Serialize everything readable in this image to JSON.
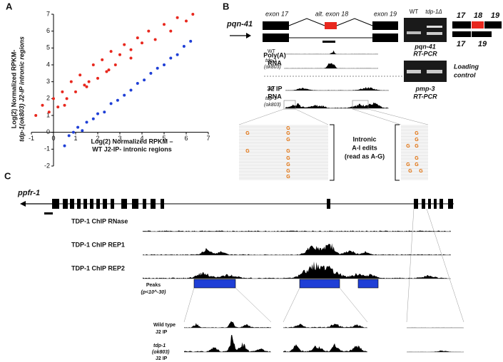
{
  "chart_data": {
    "type": "scatter",
    "x_label": "Log(2) Normalized RPKM –",
    "x_label_2": "WT J2-IP- intronic regions",
    "y_label": "Log(2) Normalized RPKM-",
    "y_label_2": "tdp-1(ok803) J2-IP intronic regions",
    "xlim": [
      -1,
      7
    ],
    "ylim": [
      -2,
      7
    ],
    "xticks": [
      -1,
      0,
      1,
      2,
      3,
      4,
      5,
      6,
      7
    ],
    "yticks": [
      -2,
      -1,
      0,
      1,
      2,
      3,
      4,
      5,
      6,
      7
    ],
    "series": [
      {
        "color": "#e8281e",
        "x": [
          -0.8,
          -0.5,
          -0.2,
          0,
          0.2,
          0.4,
          0.6,
          0.8,
          1.0,
          1.2,
          1.4,
          1.6,
          1.8,
          2.0,
          2.2,
          2.4,
          2.6,
          2.8,
          3.0,
          3.2,
          3.5,
          3.8,
          4.0,
          4.3,
          4.6,
          5.0,
          5.3,
          5.6,
          6.0,
          6.3,
          0.5,
          1.5,
          2.5,
          3.5
        ],
        "values": [
          1.0,
          1.6,
          1.2,
          2.0,
          1.5,
          2.4,
          2.0,
          3.0,
          2.4,
          3.4,
          2.8,
          3.0,
          4.0,
          3.2,
          4.3,
          3.6,
          4.8,
          4.0,
          4.6,
          5.2,
          4.9,
          5.6,
          5.3,
          6.0,
          5.5,
          6.4,
          6.0,
          6.8,
          6.6,
          7.0,
          1.6,
          2.7,
          3.7,
          4.4
        ]
      },
      {
        "color": "#1f3fd6",
        "x": [
          0.5,
          0.7,
          0.9,
          1.1,
          1.3,
          1.5,
          1.8,
          2.0,
          2.3,
          2.6,
          2.9,
          3.2,
          3.5,
          3.8,
          4.1,
          4.4,
          4.7,
          5.0,
          5.3,
          5.6,
          5.9,
          6.2
        ],
        "values": [
          -0.8,
          -0.2,
          0.0,
          0.3,
          0.1,
          0.6,
          0.8,
          1.1,
          1.2,
          1.7,
          1.9,
          2.2,
          2.5,
          2.9,
          3.1,
          3.5,
          3.8,
          4.0,
          4.4,
          4.6,
          5.1,
          5.4
        ]
      }
    ]
  },
  "panel_labels": [
    "A",
    "B",
    "C"
  ],
  "panel_b": {
    "gene": "pqn-41",
    "exon_17": "exon 17",
    "exon_18": "alt. exon 18",
    "exon_19": "exon 19",
    "polya_label": [
      "Poly(A)",
      "RNA"
    ],
    "j2_label": [
      "J2 IP",
      "RNA"
    ],
    "wt": "WT",
    "mutant": [
      "tdp-1",
      "(ok803)"
    ],
    "edits_label": [
      "Intronic",
      "A-I edits",
      "(read as A-G)"
    ],
    "edit_base": "G",
    "gel_wt": "WT",
    "gel_mut": "tdp-1Δ",
    "gel1_caption": [
      "pqn-41",
      "RT-PCR"
    ],
    "gel2_caption": [
      "pmp-3",
      "RT-PCR"
    ],
    "loading": [
      "Loading",
      "control"
    ],
    "isoform_top": [
      "17",
      "18",
      "19"
    ],
    "isoform_bottom": [
      "17",
      "19"
    ]
  },
  "panel_c": {
    "gene": "ppfr-1",
    "tracks": [
      "TDP-1 ChIP RNase",
      "TDP-1 ChIP REP1",
      "TDP-1 ChIP REP2"
    ],
    "peaks": [
      "Peaks",
      "(p<10^-30)"
    ],
    "wt_label": [
      "Wild type",
      "J2 IP"
    ],
    "mut_label": [
      "tdp-1",
      "(ok803)",
      "J2 IP"
    ]
  }
}
